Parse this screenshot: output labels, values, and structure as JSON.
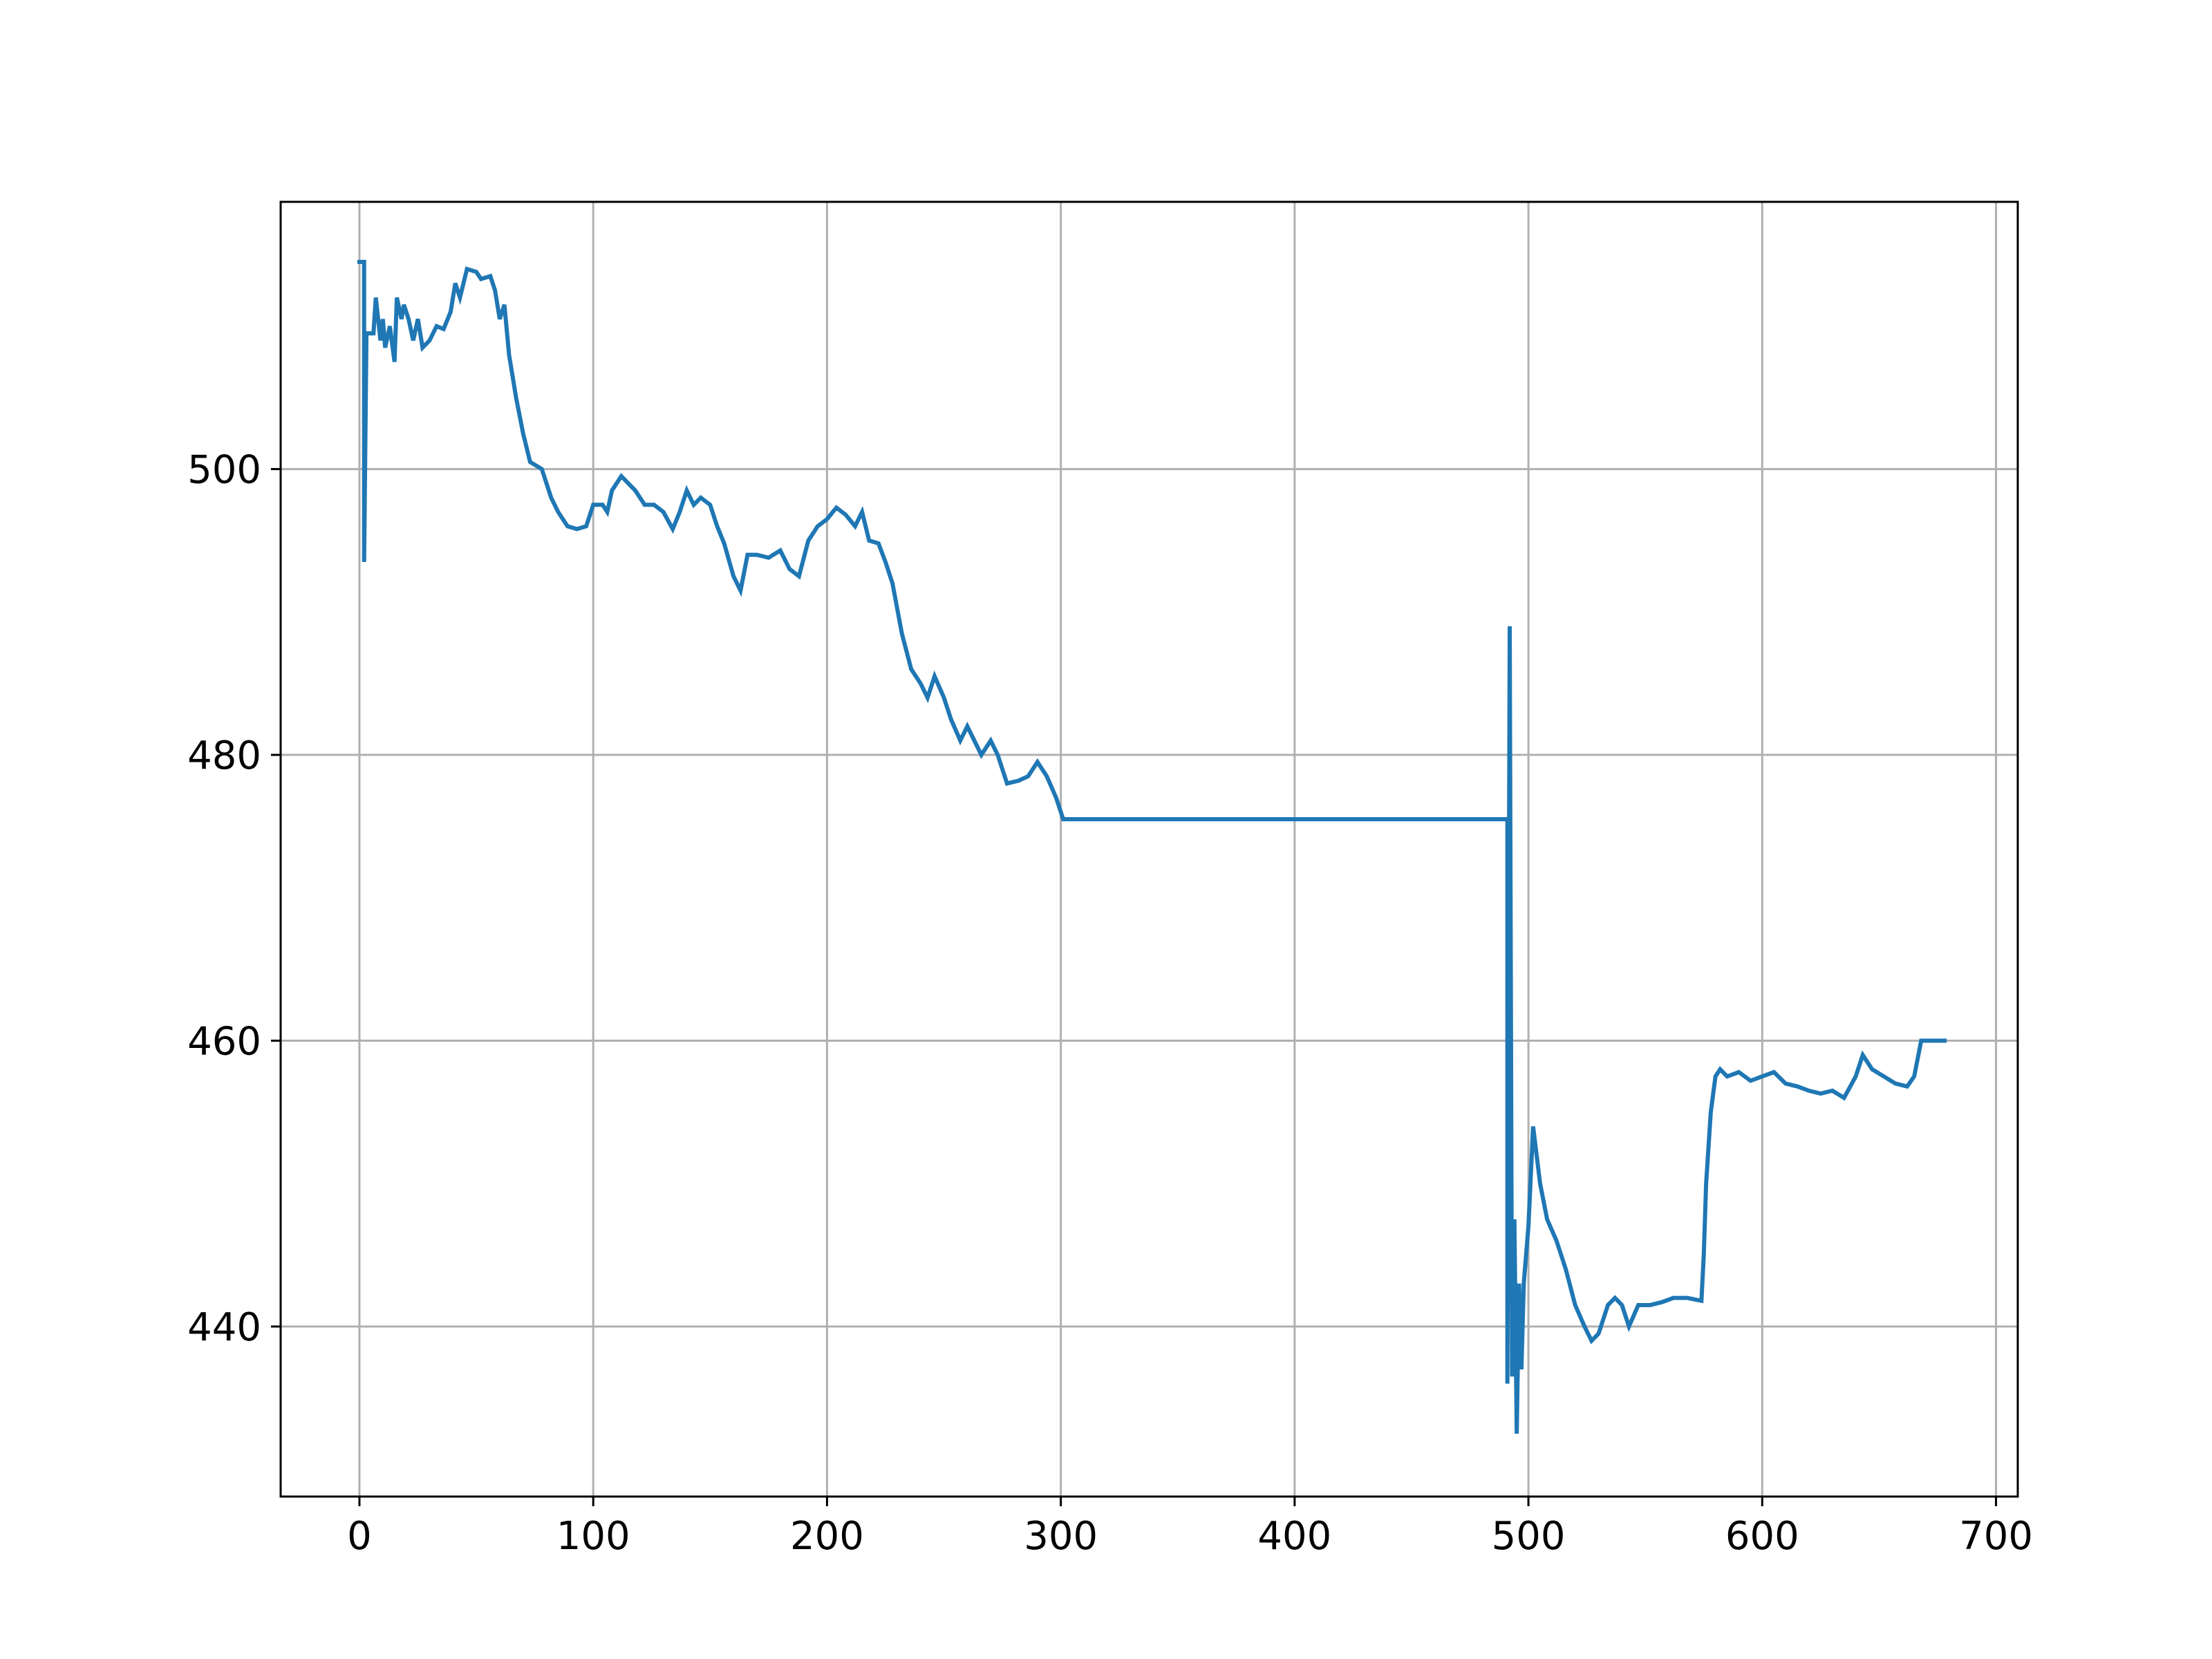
{
  "chart_data": {
    "type": "line",
    "x": [
      0,
      2,
      2,
      3,
      6,
      7,
      9,
      10,
      11,
      13,
      15,
      16,
      18,
      19,
      21,
      23,
      25,
      27,
      30,
      33,
      36,
      39,
      41,
      43,
      46,
      50,
      52,
      56,
      58,
      60,
      62,
      64,
      67,
      70,
      73,
      78,
      82,
      85,
      89,
      93,
      97,
      100,
      104,
      106,
      108,
      112,
      115,
      118,
      122,
      126,
      130,
      134,
      137,
      140,
      143,
      146,
      150,
      153,
      156,
      160,
      163,
      166,
      170,
      175,
      180,
      184,
      188,
      192,
      196,
      200,
      204,
      208,
      212,
      215,
      218,
      222,
      225,
      228,
      232,
      236,
      240,
      243,
      246,
      250,
      253,
      257,
      260,
      263,
      266,
      270,
      273,
      277,
      282,
      286,
      290,
      294,
      298,
      301,
      491,
      491,
      492,
      493,
      494,
      495,
      496,
      497,
      498,
      500,
      502,
      505,
      508,
      512,
      516,
      520,
      524,
      527,
      530,
      534,
      537,
      540,
      543,
      547,
      552,
      557,
      562,
      568,
      574,
      575,
      576,
      578,
      580,
      582,
      585,
      590,
      595,
      600,
      605,
      610,
      615,
      620,
      625,
      630,
      635,
      640,
      643,
      647,
      652,
      657,
      662,
      665,
      668,
      675,
      678
    ],
    "values": [
      514.5,
      514.5,
      493.5,
      509.5,
      509.5,
      512,
      509,
      510.5,
      508.5,
      510,
      507.5,
      512,
      510.5,
      511.5,
      510.5,
      509,
      510.5,
      508.5,
      509,
      510,
      509.8,
      511,
      513,
      512,
      514,
      513.8,
      513.3,
      513.5,
      512.5,
      510.5,
      511.5,
      508,
      505,
      502.5,
      500.5,
      500,
      498,
      497,
      496,
      495.8,
      496,
      497.5,
      497.5,
      497,
      498.5,
      499.5,
      499,
      498.5,
      497.5,
      497.5,
      497,
      495.8,
      497,
      498.5,
      497.5,
      498,
      497.5,
      496,
      494.8,
      492.5,
      491.5,
      494,
      494,
      493.8,
      494.3,
      493,
      492.5,
      495,
      496,
      496.5,
      497.3,
      496.8,
      496,
      497,
      495,
      494.8,
      493.5,
      492,
      488.5,
      486,
      485,
      484,
      485.5,
      484,
      482.5,
      481,
      482,
      481,
      480,
      481,
      480,
      478,
      478.2,
      478.5,
      479.5,
      478.5,
      477,
      475.5,
      475.5,
      436,
      489,
      436.5,
      447.5,
      432.5,
      443,
      437,
      443,
      447,
      454,
      450,
      447.5,
      446,
      444,
      441.5,
      440,
      439,
      439.5,
      441.5,
      442,
      441.5,
      440,
      441.5,
      441.5,
      441.7,
      442,
      442,
      441.8,
      445,
      450,
      455,
      457.5,
      458,
      457.5,
      457.8,
      457.2,
      457.5,
      457.8,
      457,
      456.8,
      456.5,
      456.3,
      456.5,
      456,
      457.5,
      459,
      458,
      457.5,
      457,
      456.8,
      457.5,
      460,
      460,
      460
    ],
    "color": "#1f77b4",
    "xlim": [
      -33.7,
      709.3
    ],
    "ylim": [
      428.1,
      518.7
    ],
    "xticks": [
      0,
      100,
      200,
      300,
      400,
      500,
      600,
      700
    ],
    "yticks": [
      440,
      460,
      480,
      500
    ],
    "grid": true
  }
}
